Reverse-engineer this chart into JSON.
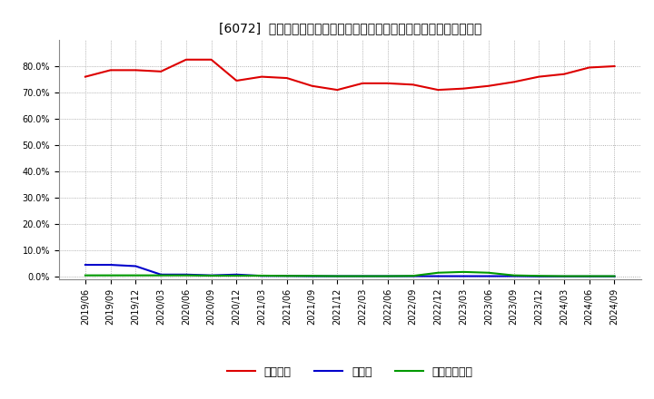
{
  "title": "[6072]  自己資本、のれん、繰延税金資産の総資産に対する比率の推移",
  "x_labels": [
    "2019/06",
    "2019/09",
    "2019/12",
    "2020/03",
    "2020/06",
    "2020/09",
    "2020/12",
    "2021/03",
    "2021/06",
    "2021/09",
    "2021/12",
    "2022/03",
    "2022/06",
    "2022/09",
    "2022/12",
    "2023/03",
    "2023/06",
    "2023/09",
    "2023/12",
    "2024/03",
    "2024/06",
    "2024/09"
  ],
  "equity": [
    76.0,
    78.5,
    78.5,
    78.0,
    82.5,
    82.5,
    74.5,
    76.0,
    75.5,
    72.5,
    71.0,
    73.5,
    73.5,
    73.0,
    71.0,
    71.5,
    72.5,
    74.0,
    76.0,
    77.0,
    79.5,
    80.0
  ],
  "goodwill": [
    4.5,
    4.5,
    4.0,
    0.8,
    0.8,
    0.5,
    0.8,
    0.3,
    0.3,
    0.2,
    0.2,
    0.2,
    0.2,
    0.2,
    0.2,
    0.2,
    0.2,
    0.2,
    0.1,
    0.1,
    0.1,
    0.1
  ],
  "deferred_tax": [
    0.5,
    0.5,
    0.5,
    0.5,
    0.5,
    0.4,
    0.4,
    0.4,
    0.3,
    0.3,
    0.2,
    0.2,
    0.2,
    0.3,
    1.5,
    1.8,
    1.5,
    0.5,
    0.3,
    0.2,
    0.2,
    0.2
  ],
  "equity_color": "#dd0000",
  "goodwill_color": "#0000cc",
  "deferred_tax_color": "#009900",
  "bg_color": "#ffffff",
  "grid_color": "#999999",
  "ylim": [
    -1,
    90
  ],
  "yticks": [
    0,
    10,
    20,
    30,
    40,
    50,
    60,
    70,
    80
  ],
  "legend_labels": [
    "自己資本",
    "のれん",
    "繰延税金資産"
  ]
}
